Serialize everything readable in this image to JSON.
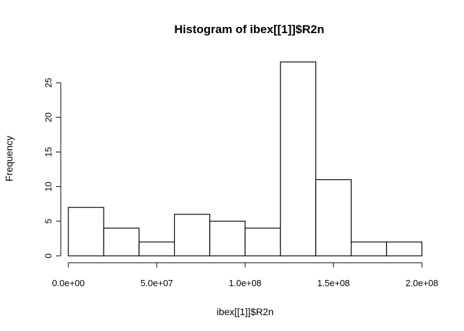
{
  "chart_data": {
    "type": "bar",
    "title": "Histogram of ibex[[1]]$R2n",
    "xlabel": "ibex[[1]]$R2n",
    "ylabel": "Frequency",
    "bin_edges": [
      0,
      20000000,
      40000000,
      60000000,
      80000000,
      100000000,
      120000000,
      140000000,
      160000000,
      180000000,
      200000000
    ],
    "values": [
      7,
      4,
      2,
      6,
      5,
      4,
      28,
      11,
      2,
      2
    ],
    "xlim": [
      0,
      200000000
    ],
    "ylim": [
      0,
      28
    ],
    "x_ticks": [
      0,
      50000000,
      100000000,
      150000000,
      200000000
    ],
    "x_tick_labels": [
      "0.0e+00",
      "5.0e+07",
      "1.0e+08",
      "1.5e+08",
      "2.0e+08"
    ],
    "y_ticks": [
      0,
      5,
      10,
      15,
      20,
      25
    ],
    "y_tick_labels": [
      "0",
      "5",
      "10",
      "15",
      "20",
      "25"
    ],
    "bar_fill": "#ffffff",
    "bar_stroke": "#000000",
    "grid": false,
    "legend": "none"
  }
}
